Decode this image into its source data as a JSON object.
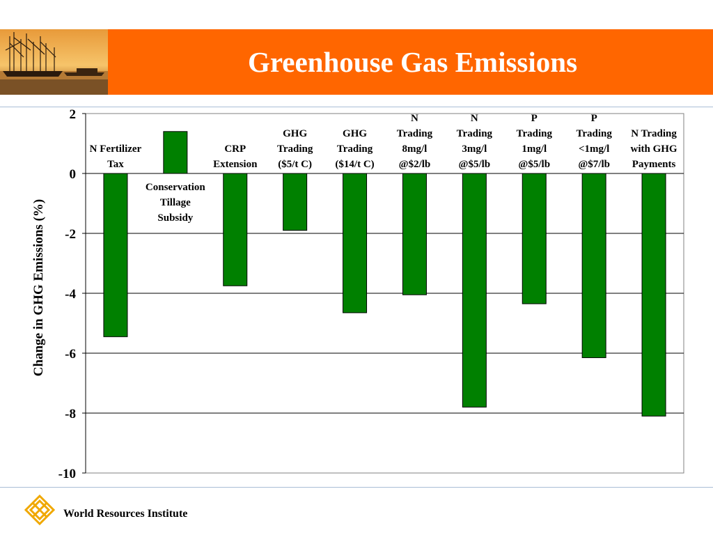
{
  "slide": {
    "title": "Greenhouse Gas Emissions",
    "footer": "World Resources Institute"
  },
  "colors": {
    "banner": "#ff6600",
    "bar": "#008000",
    "title_text": "#ffffff"
  },
  "icons": {
    "banner_photo": "sunset-harbor-boats-photo",
    "logo": "wri-diamond-logo-icon"
  },
  "chart_data": {
    "type": "bar",
    "title": "",
    "ylabel": "Change in GHG Emissions (%)",
    "xlabel": "",
    "ylim": [
      -10,
      2
    ],
    "yticks": [
      2,
      0,
      -2,
      -4,
      -6,
      -8,
      -10
    ],
    "grid": true,
    "legend": "none",
    "categories": [
      [
        "N Fertilizer",
        "Tax"
      ],
      [
        "Conservation",
        "Tillage",
        "Subsidy"
      ],
      [
        "CRP",
        "Extension"
      ],
      [
        "GHG",
        "Trading",
        "($5/t C)"
      ],
      [
        "GHG",
        "Trading",
        "($14/t C)"
      ],
      [
        "N",
        "Trading",
        "8mg/l",
        "@$2/lb"
      ],
      [
        "N",
        "Trading",
        "3mg/l",
        "@$5/lb"
      ],
      [
        "P",
        "Trading",
        "1mg/l",
        "@$5/lb"
      ],
      [
        "P",
        "Trading",
        "<1mg/l",
        "@$7/lb"
      ],
      [
        "N Trading",
        "with GHG",
        "Payments"
      ]
    ],
    "values": [
      -5.45,
      1.4,
      -3.75,
      -1.9,
      -4.65,
      -4.05,
      -7.8,
      -4.35,
      -6.15,
      -8.1
    ]
  }
}
